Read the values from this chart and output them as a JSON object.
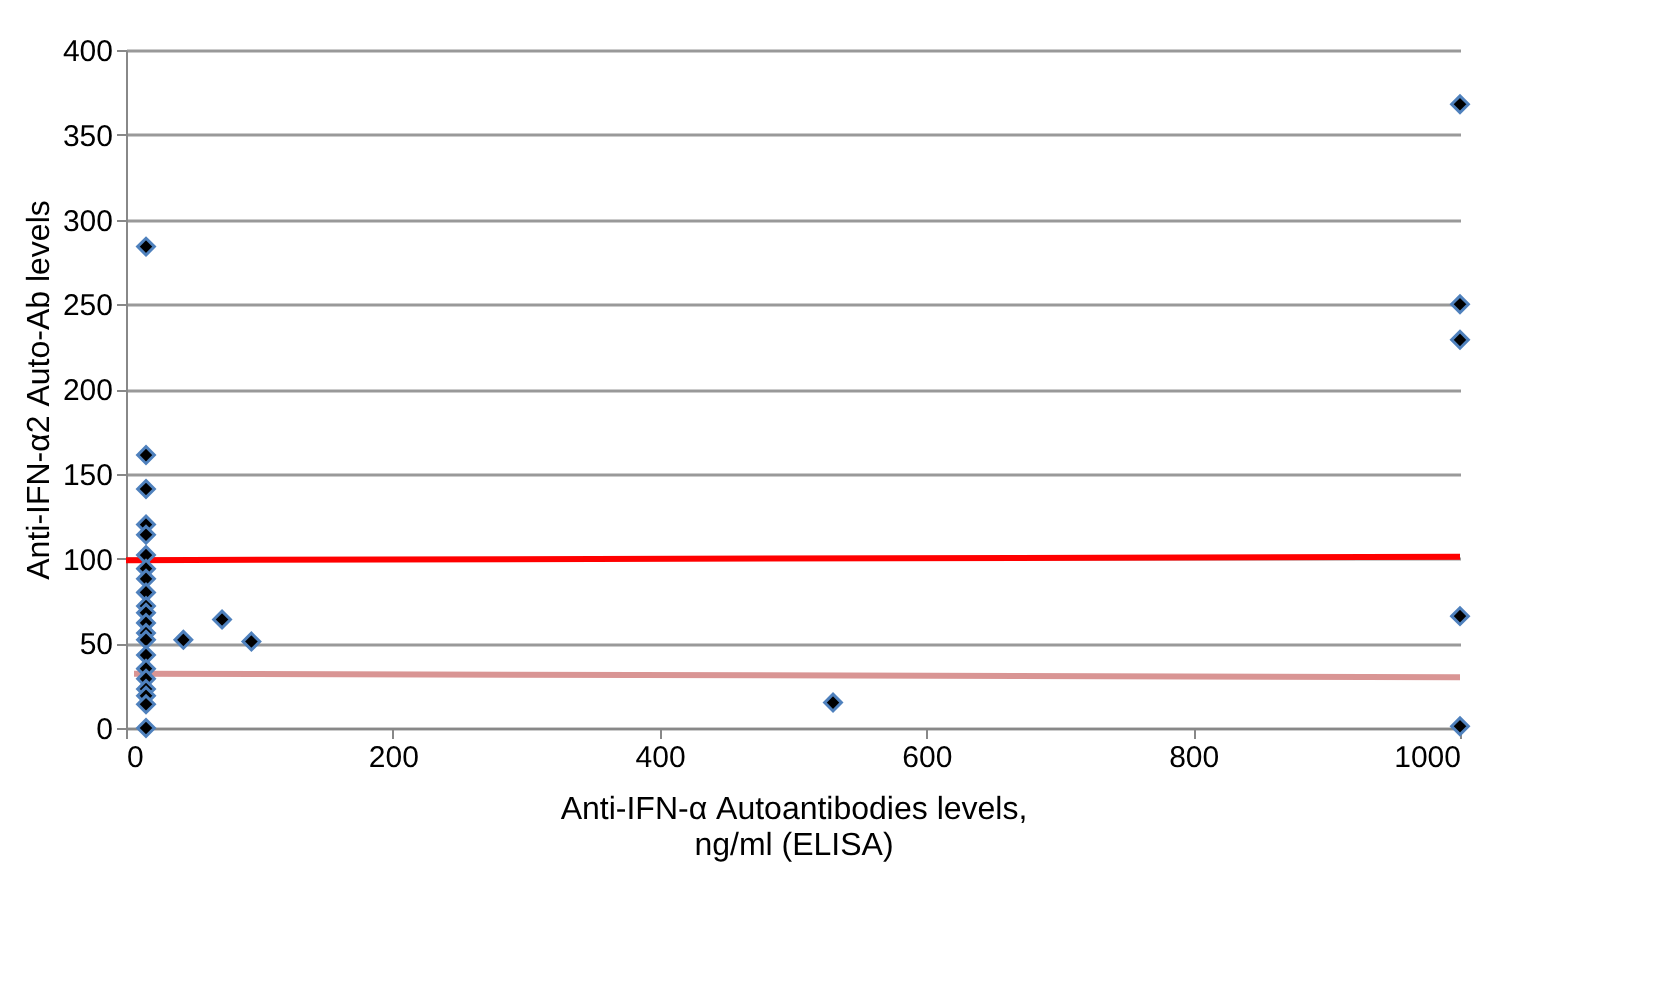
{
  "chart_data": {
    "type": "scatter",
    "xlabel": "Anti-IFN-α Autoantibodies levels,\nng/ml (ELISA)",
    "ylabel": "Anti-IFN-α2 Auto-Ab levels",
    "xlim": [
      0,
      1000
    ],
    "xticks": [
      0,
      200,
      400,
      600,
      800,
      1000
    ],
    "ylim": [
      0,
      400
    ],
    "yticks": [
      0,
      50,
      100,
      150,
      200,
      250,
      300,
      350,
      400
    ],
    "grid": "y",
    "series": [
      {
        "marker": "diamond",
        "color": "#000000",
        "x": [
          15,
          15,
          15,
          15,
          15,
          15,
          15,
          15,
          15,
          15,
          15,
          15,
          15,
          15,
          15,
          15,
          15,
          15,
          15,
          15,
          15,
          43,
          72,
          94,
          530,
          1000,
          1000,
          1000,
          1000,
          1000
        ],
        "values": [
          284,
          161,
          141,
          120,
          114,
          102,
          94,
          88,
          80,
          72,
          68,
          62,
          56,
          52,
          43,
          35,
          29,
          23,
          19,
          14,
          0,
          52,
          64,
          51,
          15,
          368,
          250,
          229,
          66,
          1
        ]
      },
      {
        "type": "line",
        "marker": "none",
        "color": "#ff0000",
        "x": [
          0,
          1000
        ],
        "values": [
          99,
          101
        ]
      },
      {
        "type": "line",
        "marker": "none",
        "color": "#d99594",
        "x": [
          6,
          1000
        ],
        "values": [
          32,
          30
        ]
      }
    ]
  }
}
